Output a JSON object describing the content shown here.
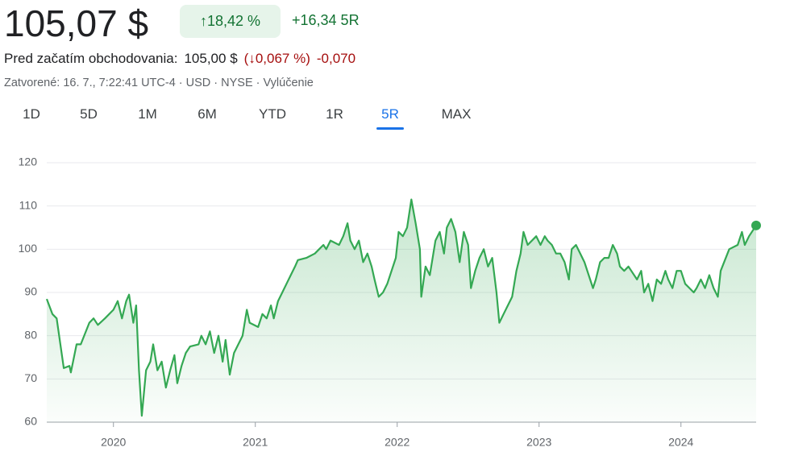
{
  "header": {
    "price": "105,07 $",
    "change_pct": "↑18,42 %",
    "change": "+16,34 5R",
    "premarket_label": "Pred začatím obchodovania:",
    "premarket_price": "105,00 $",
    "premarket_pct": "(↓0,067 %)",
    "premarket_change": "-0,070",
    "status": "Zatvorené: 16. 7., 7:22:41 UTC-4 · USD · NYSE · Vylúčenie"
  },
  "tabs": {
    "items": [
      "1D",
      "5D",
      "1M",
      "6M",
      "YTD",
      "1R",
      "5R",
      "MAX"
    ],
    "selected": 6
  },
  "chart_data": {
    "type": "line",
    "xlim": [
      2019.53,
      2024.53
    ],
    "xticks": [
      2020,
      2021,
      2022,
      2023,
      2024
    ],
    "ylim": [
      60,
      120
    ],
    "yticks": [
      60,
      70,
      80,
      90,
      100,
      110,
      120
    ],
    "grid": true,
    "series": [
      {
        "color": "#34a853",
        "x": [
          2019.53,
          2019.57,
          2019.6,
          2019.65,
          2019.69,
          2019.7,
          2019.74,
          2019.77,
          2019.83,
          2019.86,
          2019.89,
          2019.94,
          2020.0,
          2020.03,
          2020.06,
          2020.09,
          2020.11,
          2020.14,
          2020.16,
          2020.18,
          2020.2,
          2020.23,
          2020.26,
          2020.28,
          2020.31,
          2020.34,
          2020.37,
          2020.4,
          2020.43,
          2020.45,
          2020.48,
          2020.51,
          2020.54,
          2020.6,
          2020.62,
          2020.65,
          2020.68,
          2020.71,
          2020.74,
          2020.77,
          2020.79,
          2020.82,
          2020.85,
          2020.91,
          2020.94,
          2020.96,
          2021.02,
          2021.05,
          2021.08,
          2021.11,
          2021.13,
          2021.16,
          2021.19,
          2021.22,
          2021.25,
          2021.28,
          2021.3,
          2021.36,
          2021.42,
          2021.45,
          2021.48,
          2021.5,
          2021.53,
          2021.59,
          2021.62,
          2021.65,
          2021.67,
          2021.7,
          2021.73,
          2021.76,
          2021.79,
          2021.82,
          2021.84,
          2021.87,
          2021.9,
          2021.93,
          2021.99,
          2022.01,
          2022.04,
          2022.07,
          2022.1,
          2022.13,
          2022.16,
          2022.17,
          2022.2,
          2022.23,
          2022.27,
          2022.3,
          2022.33,
          2022.35,
          2022.38,
          2022.41,
          2022.44,
          2022.47,
          2022.5,
          2022.52,
          2022.55,
          2022.58,
          2022.61,
          2022.64,
          2022.67,
          2022.7,
          2022.72,
          2022.75,
          2022.78,
          2022.81,
          2022.84,
          2022.87,
          2022.89,
          2022.92,
          2022.98,
          2023.01,
          2023.04,
          2023.06,
          2023.09,
          2023.12,
          2023.15,
          2023.18,
          2023.21,
          2023.23,
          2023.26,
          2023.29,
          2023.32,
          2023.35,
          2023.38,
          2023.4,
          2023.43,
          2023.46,
          2023.49,
          2023.52,
          2023.55,
          2023.57,
          2023.6,
          2023.63,
          2023.69,
          2023.72,
          2023.74,
          2023.77,
          2023.8,
          2023.83,
          2023.86,
          2023.89,
          2023.91,
          2023.94,
          2023.97,
          2024.0,
          2024.03,
          2024.06,
          2024.09,
          2024.11,
          2024.14,
          2024.17,
          2024.2,
          2024.23,
          2024.26,
          2024.28,
          2024.34,
          2024.4,
          2024.43,
          2024.45,
          2024.48,
          2024.53
        ],
        "values": [
          88.5,
          85,
          84,
          72.5,
          73,
          71.5,
          78,
          78,
          83,
          84,
          82.5,
          84,
          86,
          88,
          84,
          88,
          89.5,
          83,
          87,
          72,
          61.5,
          72,
          74,
          78,
          72,
          74,
          68,
          72,
          75.5,
          69,
          73,
          76,
          77.5,
          78,
          80,
          78,
          81,
          76,
          80,
          74,
          79,
          71,
          76,
          80,
          86,
          83,
          82,
          85,
          84,
          87,
          84,
          88,
          90,
          92,
          94,
          96,
          97.5,
          98,
          99,
          100,
          101,
          100,
          102,
          101,
          103,
          106,
          102,
          100,
          102,
          97,
          99,
          96,
          93,
          89,
          90,
          92,
          98,
          104,
          103,
          105,
          111.5,
          106,
          100,
          89,
          96,
          94,
          102,
          104,
          99,
          105,
          107,
          104,
          97,
          104,
          101,
          91,
          95,
          98,
          100,
          96,
          98,
          90,
          83,
          85,
          87,
          89,
          95,
          99,
          104,
          101,
          103,
          101,
          103,
          102,
          101,
          99,
          99,
          97,
          93,
          100,
          101,
          99,
          97,
          94,
          91,
          93,
          97,
          98,
          98,
          101,
          99,
          96,
          95,
          96,
          93,
          95,
          90,
          92,
          88,
          93,
          92,
          95,
          93,
          91,
          95,
          95,
          92,
          91,
          90,
          91,
          93,
          91,
          94,
          91,
          89,
          95,
          100,
          101,
          104,
          101,
          103,
          105.5
        ]
      }
    ]
  }
}
